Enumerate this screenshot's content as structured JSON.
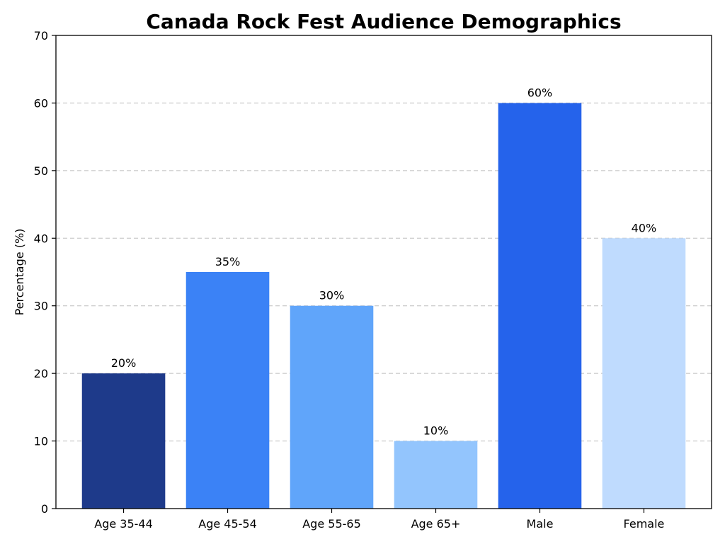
{
  "chart_data": {
    "type": "bar",
    "title": "Canada Rock Fest Audience Demographics",
    "xlabel": "",
    "ylabel": "Percentage (%)",
    "ylim": [
      0,
      70
    ],
    "yticks": [
      0,
      10,
      20,
      30,
      40,
      50,
      60,
      70
    ],
    "grid": "y-dashed",
    "categories": [
      "Age 35-44",
      "Age 45-54",
      "Age 55-65",
      "Age 65+",
      "Male",
      "Female"
    ],
    "values": [
      20,
      35,
      30,
      10,
      60,
      40
    ],
    "data_labels": [
      "20%",
      "35%",
      "30%",
      "10%",
      "60%",
      "40%"
    ],
    "colors": [
      "#1e3a8a",
      "#3b82f6",
      "#60a5fa",
      "#93c5fd",
      "#2563eb",
      "#bfdbfe"
    ]
  }
}
